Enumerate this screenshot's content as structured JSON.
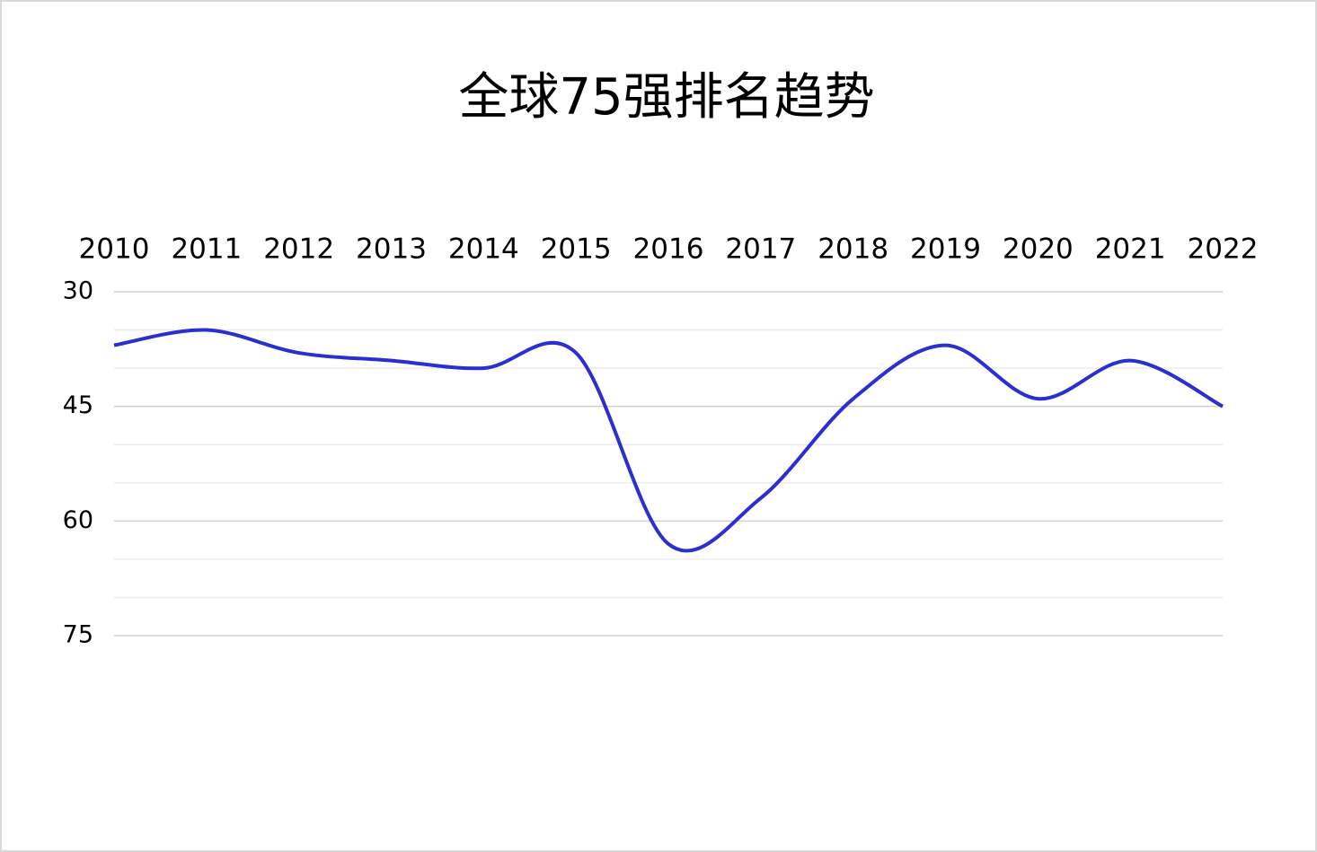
{
  "chart_data": {
    "type": "line",
    "title": "全球75强排名趋势",
    "categories": [
      "2010",
      "2011",
      "2012",
      "2013",
      "2014",
      "2015",
      "2016",
      "2017",
      "2018",
      "2019",
      "2020",
      "2021",
      "2022"
    ],
    "values": [
      37,
      35,
      38,
      39,
      40,
      38,
      63,
      57,
      44,
      37,
      44,
      39,
      45
    ],
    "color": "#2a2fd0",
    "ylim": [
      30,
      75
    ],
    "yticks": [
      30,
      45,
      60,
      75
    ],
    "minor_yticks": [
      35,
      40,
      50,
      55,
      65,
      70
    ],
    "y_inverted": true,
    "x_axis_position": "top",
    "smooth": true,
    "grid": true
  }
}
